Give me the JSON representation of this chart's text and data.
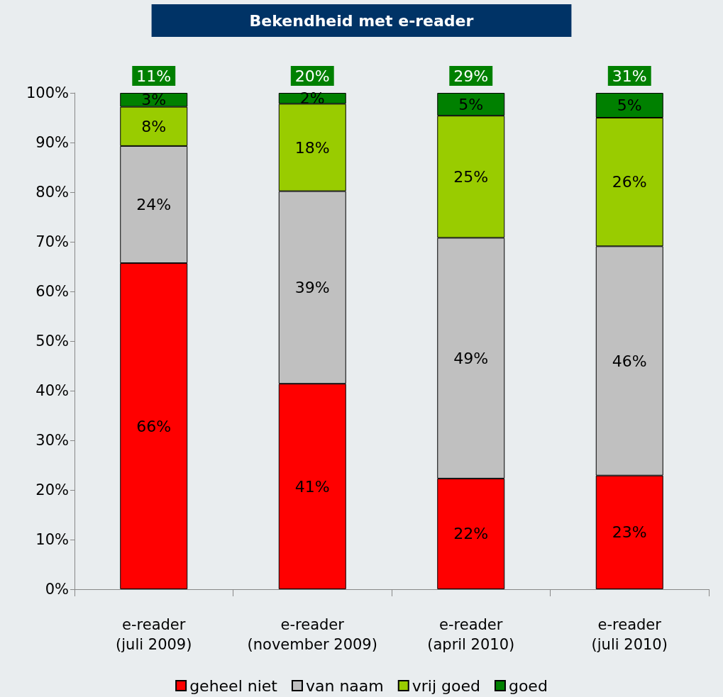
{
  "chart_data": {
    "type": "bar",
    "title": "Bekendheid met e-reader",
    "stacked": true,
    "categories": [
      "e-reader\n(juli 2009)",
      "e-reader\n(november 2009)",
      "e-reader\n(april 2010)",
      "e-reader\n(juli 2010)"
    ],
    "series": [
      {
        "name": "geheel niet",
        "color": "#ff0000",
        "values": [
          65.7,
          41.4,
          22.3,
          22.9
        ],
        "value_labels": [
          "66%",
          "41%",
          "22%",
          "23%"
        ]
      },
      {
        "name": "van naam",
        "color": "#c0c0c0",
        "values": [
          23.6,
          38.8,
          48.5,
          46.2
        ],
        "value_labels": [
          "24%",
          "39%",
          "49%",
          "46%"
        ]
      },
      {
        "name": "vrij goed",
        "color": "#99cc00",
        "values": [
          7.9,
          17.6,
          24.6,
          25.9
        ],
        "value_labels": [
          "8%",
          "18%",
          "25%",
          "26%"
        ]
      },
      {
        "name": "goed",
        "color": "#008000",
        "values": [
          2.8,
          2.2,
          4.6,
          5.0
        ],
        "value_labels": [
          "3%",
          "2%",
          "5%",
          "5%"
        ]
      }
    ],
    "annotations": [
      {
        "text": "11%",
        "x": "e-reader\n(juli 2009)",
        "y": 100
      },
      {
        "text": "20%",
        "x": "e-reader\n(november 2009)",
        "y": 100
      },
      {
        "text": "29%",
        "x": "e-reader\n(april 2010)",
        "y": 100
      },
      {
        "text": "31%",
        "x": "e-reader\n(juli 2010)",
        "y": 100
      }
    ],
    "ylim": [
      0,
      100
    ],
    "yticks": [
      {
        "value": 0,
        "label": "0%"
      },
      {
        "value": 10,
        "label": "10%"
      },
      {
        "value": 20,
        "label": "20%"
      },
      {
        "value": 30,
        "label": "30%"
      },
      {
        "value": 40,
        "label": "40%"
      },
      {
        "value": 50,
        "label": "50%"
      },
      {
        "value": 60,
        "label": "60%"
      },
      {
        "value": 70,
        "label": "70%"
      },
      {
        "value": 80,
        "label": "80%"
      },
      {
        "value": 90,
        "label": "90%"
      },
      {
        "value": 100,
        "label": "100%"
      }
    ],
    "grid": false,
    "legend": "bottom"
  }
}
